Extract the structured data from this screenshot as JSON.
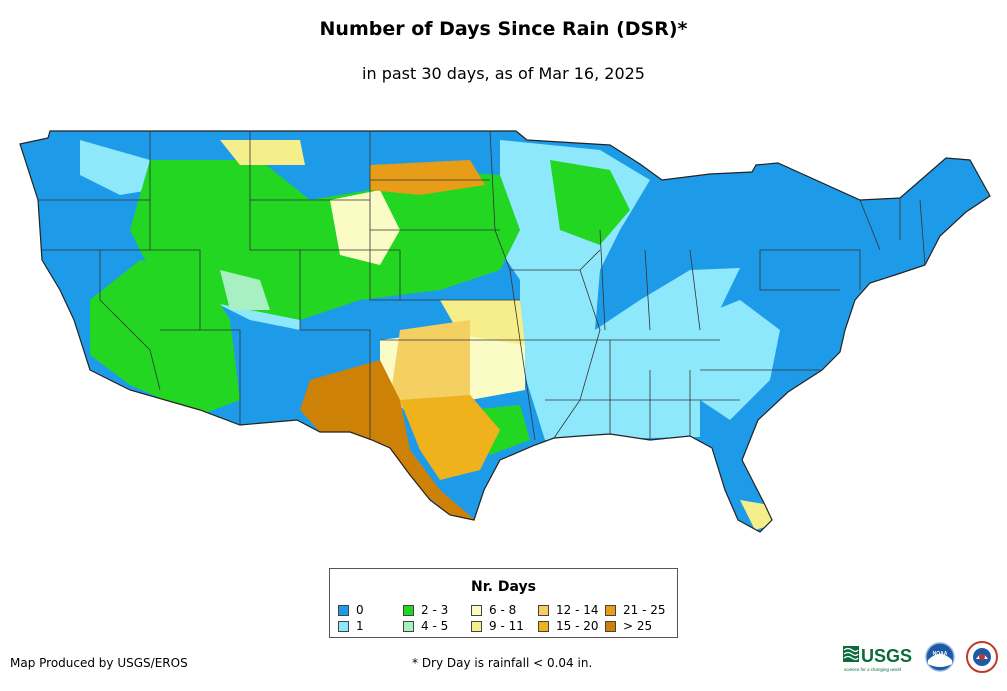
{
  "header": {
    "title": "Number of Days Since Rain (DSR)*",
    "subtitle": "in past 30 days, as of Mar 16, 2025"
  },
  "legend": {
    "title": "Nr. Days",
    "items": [
      {
        "label": "0",
        "color": "#1e9be8"
      },
      {
        "label": "1",
        "color": "#8ee8fb"
      },
      {
        "label": "2 - 3",
        "color": "#22d622"
      },
      {
        "label": "4 - 5",
        "color": "#a6f0c2"
      },
      {
        "label": "6 - 8",
        "color": "#fbfbc5"
      },
      {
        "label": "9 - 11",
        "color": "#f6ee8a"
      },
      {
        "label": "12 - 14",
        "color": "#f4d063"
      },
      {
        "label": "15 - 20",
        "color": "#efb21c"
      },
      {
        "label": "21 - 25",
        "color": "#e79d17"
      },
      {
        "label": "> 25",
        "color": "#cd8107"
      }
    ]
  },
  "footer": {
    "credit": "Map Produced by USGS/EROS",
    "footnote": "* Dry Day is rainfall < 0.04 in."
  },
  "logos": {
    "usgs_text": "USGS",
    "usgs_tagline": "science for a changing world",
    "noaa_text": "NOAA"
  }
}
